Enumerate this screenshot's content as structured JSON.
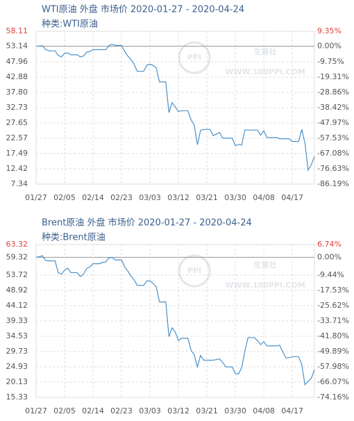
{
  "chart_data": [
    {
      "type": "line",
      "title": "WTI原油 外盘 市场价 2020-01-27 - 2020-04-24",
      "subtitle": "种类:WTI原油",
      "watermark_logo": "PPI",
      "watermark": "生意社",
      "watermark_url": "WWW.100PPI.COM",
      "color": "#4a90c8",
      "limit_label_color": "#e0403c",
      "grid": true,
      "x": [
        "01/27",
        "01/28",
        "01/29",
        "01/30",
        "01/31",
        "02/01",
        "02/02",
        "02/03",
        "02/04",
        "02/05",
        "02/06",
        "02/07",
        "02/08",
        "02/09",
        "02/10",
        "02/11",
        "02/12",
        "02/13",
        "02/14",
        "02/15",
        "02/16",
        "02/17",
        "02/18",
        "02/19",
        "02/20",
        "02/21",
        "02/22",
        "02/23",
        "02/24",
        "02/25",
        "02/26",
        "02/27",
        "02/28",
        "02/29",
        "03/01",
        "03/02",
        "03/03",
        "03/04",
        "03/05",
        "03/06",
        "03/07",
        "03/08",
        "03/09",
        "03/10",
        "03/11",
        "03/12",
        "03/13",
        "03/14",
        "03/15",
        "03/16",
        "03/17",
        "03/18",
        "03/19",
        "03/20",
        "03/21",
        "03/22",
        "03/23",
        "03/24",
        "03/25",
        "03/26",
        "03/27",
        "03/28",
        "03/29",
        "03/30",
        "03/31",
        "04/01",
        "04/02",
        "04/03",
        "04/04",
        "04/05",
        "04/06",
        "04/07",
        "04/08",
        "04/09",
        "04/10",
        "04/11",
        "04/12",
        "04/13",
        "04/14",
        "04/15",
        "04/16",
        "04/17",
        "04/18",
        "04/19",
        "04/20",
        "04/21",
        "04/22",
        "04/23",
        "04/24"
      ],
      "values": [
        53.14,
        53.2,
        53.3,
        52.1,
        51.6,
        51.6,
        51.6,
        50.1,
        49.6,
        50.8,
        50.9,
        50.3,
        50.3,
        50.3,
        49.6,
        49.9,
        51.2,
        51.4,
        52.0,
        52.0,
        52.0,
        52.0,
        52.0,
        53.3,
        53.8,
        53.4,
        53.4,
        53.4,
        51.4,
        49.9,
        48.7,
        47.1,
        44.8,
        44.8,
        44.8,
        46.8,
        47.2,
        46.8,
        45.9,
        41.3,
        41.3,
        41.3,
        31.1,
        34.4,
        33.0,
        31.5,
        31.7,
        31.7,
        31.7,
        28.7,
        27.0,
        20.4,
        25.2,
        25.5,
        25.5,
        25.5,
        23.4,
        24.0,
        24.5,
        22.6,
        22.6,
        22.6,
        22.6,
        20.1,
        20.5,
        20.3,
        25.3,
        25.3,
        25.3,
        25.3,
        25.3,
        23.6,
        25.1,
        22.8,
        22.8,
        22.8,
        22.8,
        22.4,
        22.4,
        22.4,
        22.4,
        21.5,
        21.5,
        21.5,
        25.5,
        21.0,
        12.0,
        13.8,
        16.5
      ],
      "xticks": [
        "01/27",
        "02/05",
        "02/14",
        "02/23",
        "03/03",
        "03/12",
        "03/21",
        "03/30",
        "04/08",
        "04/17"
      ],
      "ylim": [
        7.34,
        58.11
      ],
      "yticks": [
        58.11,
        53.14,
        47.96,
        42.88,
        {
          "value": 37.8,
          "label": "37.80"
        },
        32.73,
        27.65,
        22.57,
        17.49,
        12.42,
        7.34
      ],
      "y2lim": [
        -86.19,
        9.35
      ],
      "y2ticks": [
        {
          "value": 9.35,
          "label": "9.35%"
        },
        {
          "value": 0,
          "label": "0.00%"
        },
        {
          "value": -9.75,
          "label": "-9.75%"
        },
        {
          "value": -19.31,
          "label": "-19.31%"
        },
        {
          "value": -28.86,
          "label": "-28.86%"
        },
        {
          "value": -38.42,
          "label": "-38.42%"
        },
        {
          "value": -47.97,
          "label": "-47.97%"
        },
        {
          "value": -57.53,
          "label": "-57.53%"
        },
        {
          "value": -67.08,
          "label": "-67.08%"
        },
        {
          "value": -76.63,
          "label": "-76.63%"
        },
        {
          "value": -86.19,
          "label": "-86.19%"
        }
      ]
    },
    {
      "type": "line",
      "title": "Brent原油 外盘 市场价 2020-01-27 - 2020-04-24",
      "subtitle": "种类:Brent原油",
      "watermark_logo": "PPI",
      "watermark": "生意社",
      "watermark_url": "WWW.100PPI.COM",
      "color": "#4a90c8",
      "limit_label_color": "#e0403c",
      "grid": true,
      "x": [
        "01/27",
        "01/28",
        "01/29",
        "01/30",
        "01/31",
        "02/01",
        "02/02",
        "02/03",
        "02/04",
        "02/05",
        "02/06",
        "02/07",
        "02/08",
        "02/09",
        "02/10",
        "02/11",
        "02/12",
        "02/13",
        "02/14",
        "02/15",
        "02/16",
        "02/17",
        "02/18",
        "02/19",
        "02/20",
        "02/21",
        "02/22",
        "02/23",
        "02/24",
        "02/25",
        "02/26",
        "02/27",
        "02/28",
        "02/29",
        "03/01",
        "03/02",
        "03/03",
        "03/04",
        "03/05",
        "03/06",
        "03/07",
        "03/08",
        "03/09",
        "03/10",
        "03/11",
        "03/12",
        "03/13",
        "03/14",
        "03/15",
        "03/16",
        "03/17",
        "03/18",
        "03/19",
        "03/20",
        "03/21",
        "03/22",
        "03/23",
        "03/24",
        "03/25",
        "03/26",
        "03/27",
        "03/28",
        "03/29",
        "03/30",
        "03/31",
        "04/01",
        "04/02",
        "04/03",
        "04/04",
        "04/05",
        "04/06",
        "04/07",
        "04/08",
        "04/09",
        "04/10",
        "04/11",
        "04/12",
        "04/13",
        "04/14",
        "04/15",
        "04/16",
        "04/17",
        "04/18",
        "04/19",
        "04/20",
        "04/21",
        "04/22",
        "04/23",
        "04/24"
      ],
      "values": [
        59.32,
        59.5,
        59.8,
        58.3,
        58.2,
        58.2,
        58.2,
        54.5,
        54.0,
        55.3,
        55.9,
        54.5,
        54.5,
        54.5,
        53.3,
        54.0,
        55.8,
        56.3,
        57.3,
        57.3,
        57.3,
        57.7,
        57.8,
        59.1,
        59.3,
        58.5,
        58.5,
        58.5,
        56.3,
        55.0,
        53.4,
        52.2,
        50.5,
        50.5,
        50.5,
        51.9,
        51.9,
        51.1,
        50.0,
        45.3,
        45.3,
        45.3,
        34.4,
        37.2,
        35.8,
        33.2,
        33.9,
        33.9,
        33.9,
        30.1,
        28.7,
        24.9,
        28.5,
        27.0,
        27.0,
        27.0,
        27.0,
        27.2,
        27.4,
        26.3,
        24.9,
        24.9,
        24.9,
        22.8,
        22.7,
        24.7,
        29.9,
        34.1,
        34.1,
        34.1,
        33.1,
        31.9,
        32.8,
        31.5,
        31.5,
        31.5,
        31.5,
        31.7,
        29.6,
        27.7,
        27.8,
        28.1,
        28.1,
        28.1,
        25.6,
        19.3,
        20.4,
        21.3,
        24.0
      ],
      "xticks": [
        "01/27",
        "02/05",
        "02/14",
        "02/23",
        "03/03",
        "03/12",
        "03/21",
        "03/30",
        "04/08",
        "04/17"
      ],
      "ylim": [
        15.33,
        63.32
      ],
      "yticks": [
        63.32,
        59.32,
        53.72,
        48.92,
        44.12,
        39.33,
        34.53,
        29.73,
        24.93,
        20.13,
        15.33
      ],
      "y2lim": [
        -74.16,
        6.74
      ],
      "y2ticks": [
        {
          "value": 6.74,
          "label": "6.74%"
        },
        {
          "value": 0,
          "label": "0.00%"
        },
        {
          "value": -9.44,
          "label": "-9.44%"
        },
        {
          "value": -17.53,
          "label": "-17.53%"
        },
        {
          "value": -25.62,
          "label": "-25.62%"
        },
        {
          "value": -33.71,
          "label": "-33.71%"
        },
        {
          "value": -41.8,
          "label": "-41.80%"
        },
        {
          "value": -49.89,
          "label": "-49.89%"
        },
        {
          "value": -57.98,
          "label": "-57.98%"
        },
        {
          "value": -66.07,
          "label": "-66.07%"
        },
        {
          "value": -74.16,
          "label": "-74.16%"
        }
      ]
    }
  ]
}
